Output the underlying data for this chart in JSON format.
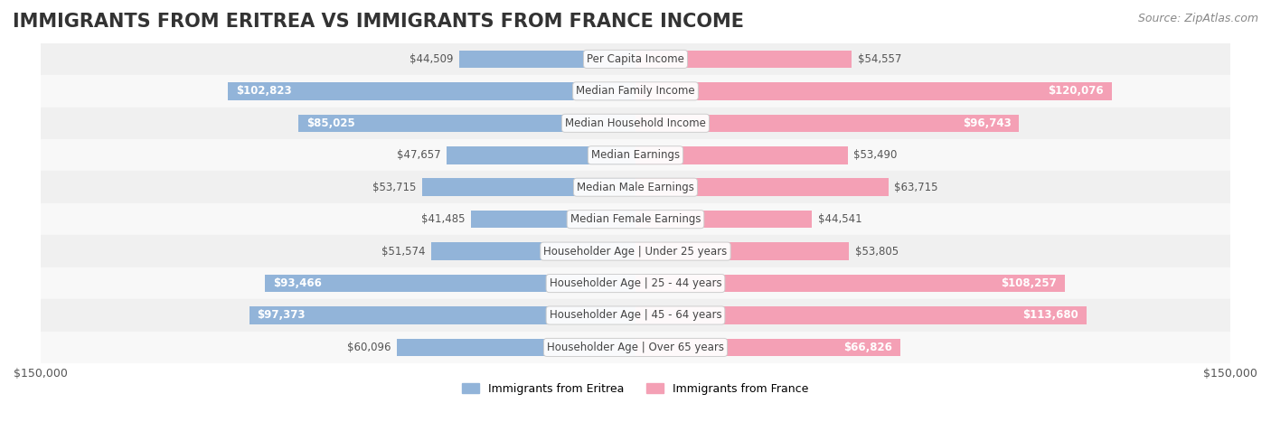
{
  "title": "IMMIGRANTS FROM ERITREA VS IMMIGRANTS FROM FRANCE INCOME",
  "source": "Source: ZipAtlas.com",
  "categories": [
    "Per Capita Income",
    "Median Family Income",
    "Median Household Income",
    "Median Earnings",
    "Median Male Earnings",
    "Median Female Earnings",
    "Householder Age | Under 25 years",
    "Householder Age | 25 - 44 years",
    "Householder Age | 45 - 64 years",
    "Householder Age | Over 65 years"
  ],
  "eritrea_values": [
    44509,
    102823,
    85025,
    47657,
    53715,
    41485,
    51574,
    93466,
    97373,
    60096
  ],
  "france_values": [
    54557,
    120076,
    96743,
    53490,
    63715,
    44541,
    53805,
    108257,
    113680,
    66826
  ],
  "eritrea_color": "#92b4d9",
  "france_color": "#f4a0b5",
  "eritrea_label_color_threshold": 70000,
  "france_label_color_threshold": 70000,
  "bar_height": 0.55,
  "xlim": 150000,
  "background_color": "#f5f5f5",
  "row_bg_light": "#f9f9f9",
  "row_bg_dark": "#eeeeee",
  "label_bg_color": "#ffffff",
  "label_border_color": "#cccccc",
  "title_fontsize": 15,
  "source_fontsize": 9,
  "tick_label_fontsize": 9,
  "bar_label_fontsize": 8.5,
  "category_fontsize": 8.5,
  "legend_fontsize": 9
}
